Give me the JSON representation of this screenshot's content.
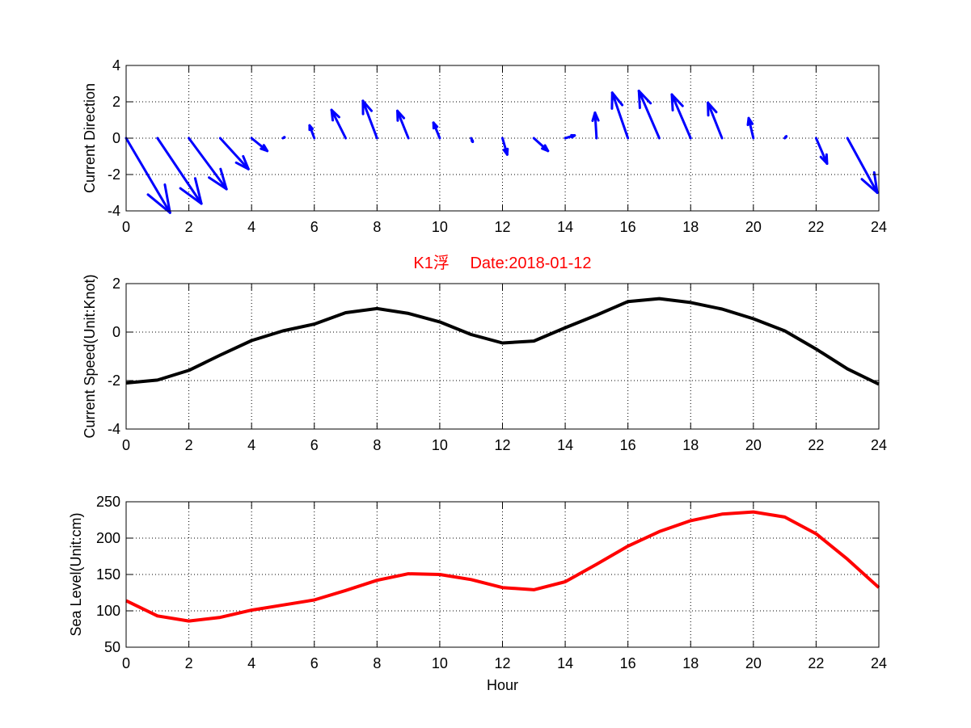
{
  "figure_title": "K1浮　 Date:2018-01-12",
  "colors": {
    "quiver": "#0000ff",
    "speed": "#000000",
    "sea_level": "#ff0000",
    "title": "#ff0000",
    "grid": "#000000"
  },
  "chart_data": [
    {
      "type": "quiver",
      "ylabel": "Current Direction",
      "xlim": [
        0,
        24
      ],
      "ylim": [
        -4,
        4
      ],
      "xticks": [
        0,
        2,
        4,
        6,
        8,
        10,
        12,
        14,
        16,
        18,
        20,
        22,
        24
      ],
      "yticks": [
        -4,
        -2,
        0,
        2,
        4
      ],
      "grid": true,
      "x": [
        0,
        1,
        2,
        3,
        4,
        5,
        6,
        7,
        8,
        9,
        10,
        11,
        12,
        13,
        14,
        15,
        16,
        17,
        18,
        19,
        20,
        21,
        22,
        23,
        24
      ],
      "u": [
        1.4,
        1.4,
        1.2,
        0.9,
        0.5,
        0.05,
        -0.15,
        -0.45,
        -0.45,
        -0.35,
        -0.2,
        0.05,
        0.15,
        0.45,
        0.3,
        -0.05,
        -0.5,
        -0.65,
        -0.6,
        -0.45,
        -0.15,
        0.05,
        0.35,
        0.95,
        0.0
      ],
      "v": [
        -4.1,
        -3.6,
        -2.8,
        -1.7,
        -0.7,
        0.05,
        0.7,
        1.55,
        2.05,
        1.5,
        0.85,
        -0.2,
        -0.9,
        -0.7,
        0.15,
        1.4,
        2.5,
        2.6,
        2.4,
        1.95,
        1.1,
        0.1,
        -1.4,
        -3.0,
        0.0
      ]
    },
    {
      "type": "line",
      "ylabel": "Current Speed(Unit:Knot)",
      "xlim": [
        0,
        24
      ],
      "ylim": [
        -4,
        2
      ],
      "xticks": [
        0,
        2,
        4,
        6,
        8,
        10,
        12,
        14,
        16,
        18,
        20,
        22,
        24
      ],
      "yticks": [
        -4,
        -2,
        0,
        2
      ],
      "grid": true,
      "x": [
        0,
        1,
        2,
        3,
        4,
        5,
        6,
        7,
        8,
        9,
        10,
        11,
        12,
        13,
        14,
        15,
        16,
        17,
        18,
        19,
        20,
        21,
        22,
        23,
        24
      ],
      "y": [
        -2.1,
        -1.98,
        -1.58,
        -0.95,
        -0.35,
        0.05,
        0.33,
        0.8,
        0.97,
        0.77,
        0.42,
        -0.1,
        -0.45,
        -0.37,
        0.18,
        0.7,
        1.26,
        1.38,
        1.22,
        0.95,
        0.55,
        0.05,
        -0.7,
        -1.52,
        -2.15
      ]
    },
    {
      "type": "line",
      "xlabel": "Hour",
      "ylabel": "Sea Level(Unit:cm)",
      "xlim": [
        0,
        24
      ],
      "ylim": [
        50,
        250
      ],
      "xticks": [
        0,
        2,
        4,
        6,
        8,
        10,
        12,
        14,
        16,
        18,
        20,
        22,
        24
      ],
      "yticks": [
        50,
        100,
        150,
        200,
        250
      ],
      "grid": true,
      "x": [
        0,
        1,
        2,
        3,
        4,
        5,
        6,
        7,
        8,
        9,
        10,
        11,
        12,
        13,
        14,
        15,
        16,
        17,
        18,
        19,
        20,
        21,
        22,
        23,
        24
      ],
      "y": [
        114,
        93,
        86,
        91,
        101,
        108,
        115,
        128,
        142,
        151,
        150,
        143,
        132,
        129,
        140,
        164,
        189,
        209,
        224,
        233,
        236,
        229,
        206,
        171,
        132
      ]
    }
  ]
}
